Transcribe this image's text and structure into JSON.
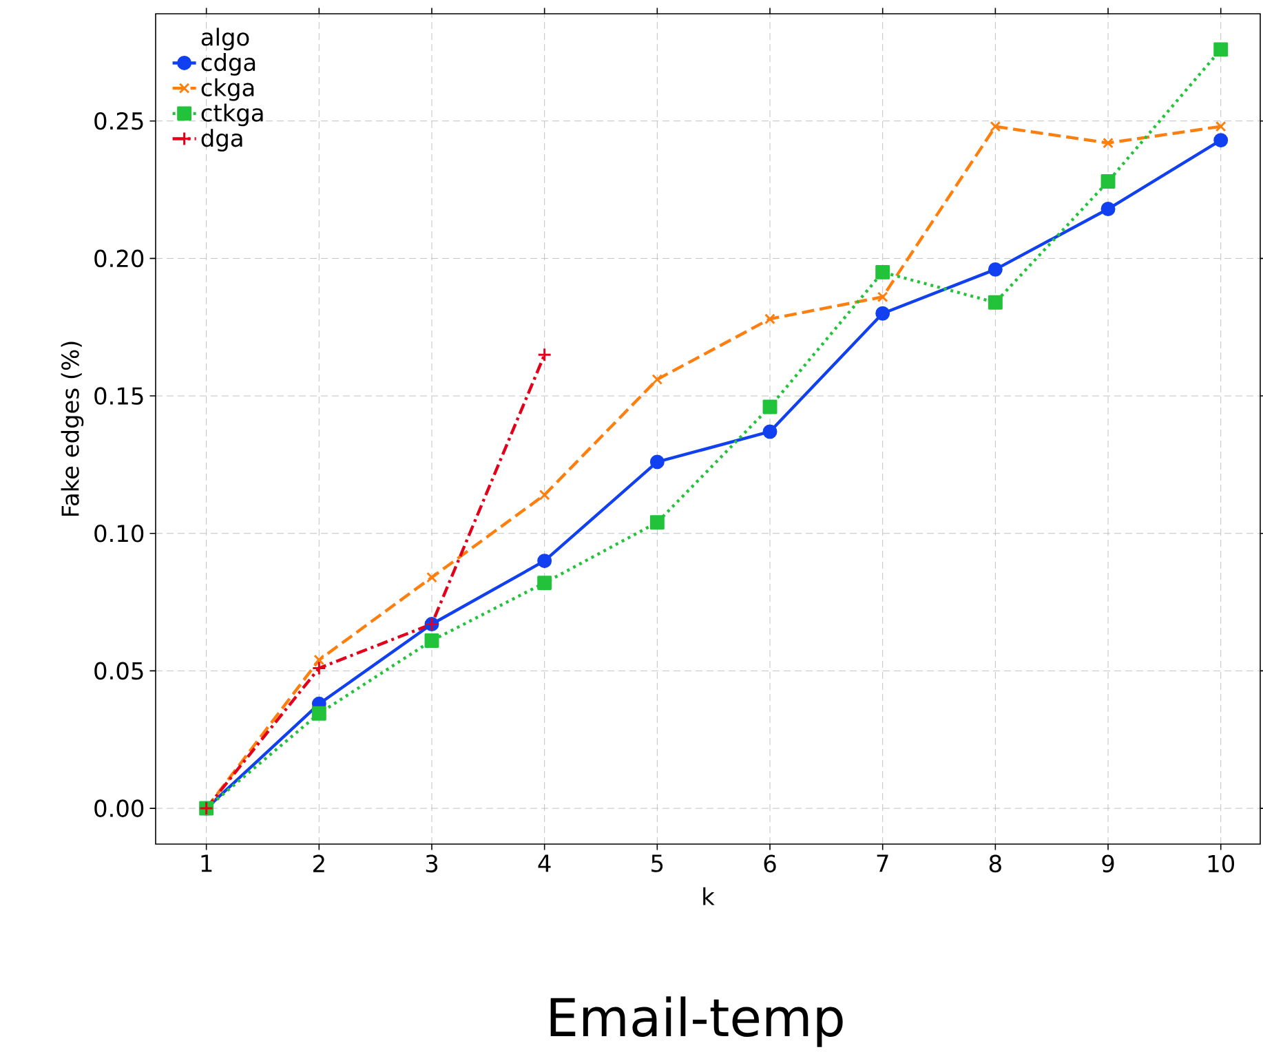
{
  "chart_data": {
    "type": "line",
    "title": "Email-temp",
    "xlabel": "k",
    "ylabel": "Fake edges (%)",
    "legend_title": "algo",
    "legend": "top left",
    "grid": true,
    "x": [
      1,
      2,
      3,
      4,
      5,
      6,
      7,
      8,
      9,
      10
    ],
    "series": [
      {
        "name": "cdga",
        "color": "#1040f0",
        "marker": "circle",
        "line_style": "solid",
        "values": [
          0,
          0.038,
          0.067,
          0.09,
          0.126,
          0.137,
          0.18,
          0.196,
          0.218,
          0.243
        ]
      },
      {
        "name": "ckga",
        "color": "#ff7f0e",
        "marker": "cross",
        "line_style": "dashed",
        "values": [
          0,
          0.054,
          0.084,
          0.114,
          0.156,
          0.178,
          0.186,
          0.248,
          0.242,
          0.248
        ]
      },
      {
        "name": "ctkga",
        "color": "#22c33a",
        "marker": "square",
        "line_style": "dotted",
        "values": [
          0,
          0.0345,
          0.061,
          0.082,
          0.104,
          0.146,
          0.195,
          0.184,
          0.228,
          0.276
        ]
      },
      {
        "name": "dga",
        "color": "#e3001a",
        "marker": "plus",
        "line_style": "dashdot",
        "x": [
          1,
          2,
          3,
          4
        ],
        "values": [
          0,
          0.051,
          0.067,
          0.165
        ]
      }
    ],
    "xlim": [
      0.55,
      10.35
    ],
    "ylim": [
      -0.013,
      0.289
    ],
    "xticks": [
      1,
      2,
      3,
      4,
      5,
      6,
      7,
      8,
      9,
      10
    ],
    "yticks": [
      {
        "value": 0,
        "label": "0.00"
      },
      {
        "value": 0.05,
        "label": "0.05"
      },
      {
        "value": 0.1,
        "label": "0.10"
      },
      {
        "value": 0.15,
        "label": "0.15"
      },
      {
        "value": 0.2,
        "label": "0.20"
      },
      {
        "value": 0.25,
        "label": "0.25"
      }
    ]
  }
}
